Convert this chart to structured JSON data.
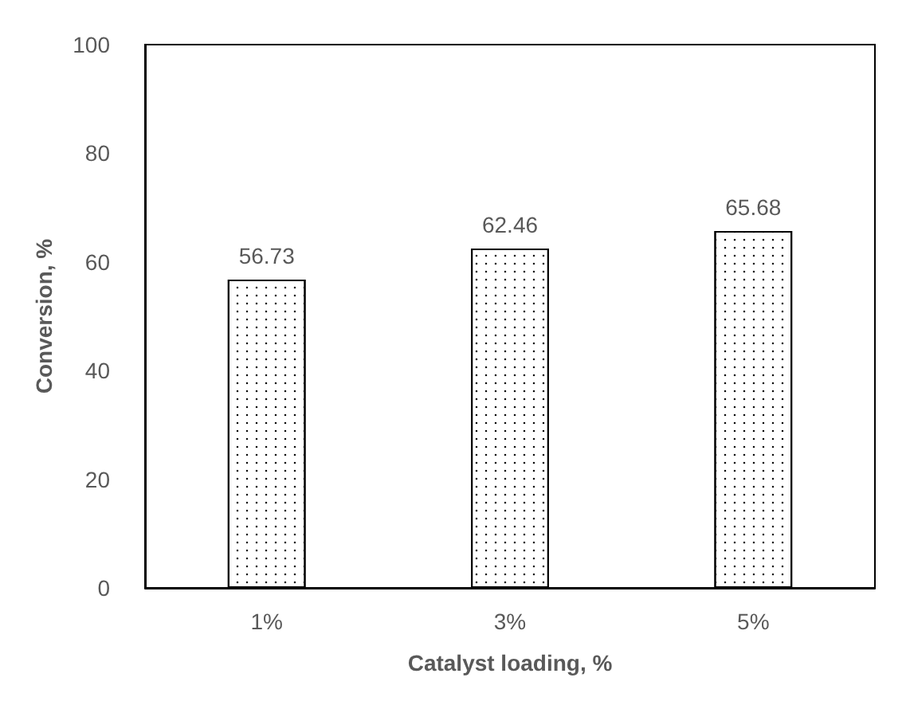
{
  "chart_data": {
    "type": "bar",
    "xlabel": "Catalyst loading, %",
    "ylabel": "Conversion, %",
    "categories": [
      "1%",
      "3%",
      "5%"
    ],
    "values": [
      56.73,
      62.46,
      65.68
    ],
    "color": "#ffffff",
    "ylim": [
      0,
      100
    ],
    "yticks": [
      0,
      20,
      40,
      60,
      80,
      100
    ],
    "grid": false,
    "data_labels": true
  }
}
